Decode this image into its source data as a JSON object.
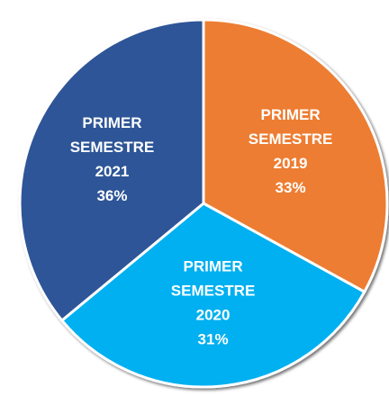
{
  "chart_data": {
    "type": "pie",
    "categories": [
      [
        "PRIMER",
        "SEMESTRE",
        "2019"
      ],
      [
        "PRIMER",
        "SEMESTRE",
        "2020"
      ],
      [
        "PRIMER",
        "SEMESTRE",
        "2021"
      ]
    ],
    "values": [
      33,
      31,
      36
    ],
    "value_labels": [
      "33%",
      "31%",
      "36%"
    ],
    "colors": [
      "#ed7d31",
      "#00b0f0",
      "#2f5597"
    ]
  }
}
